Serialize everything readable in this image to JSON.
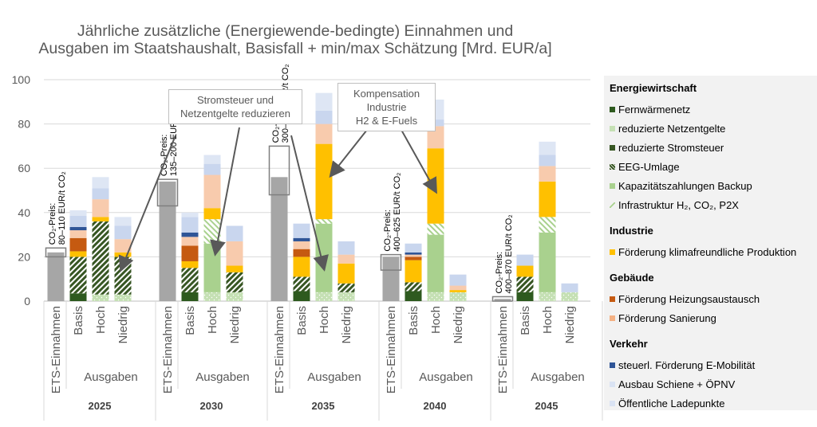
{
  "title_line1": "Jährliche zusätzliche (Energiewende-bedingte) Einnahmen und",
  "title_line2": "Ausgaben im Staatshaushalt, Basisfall + min/max Schätzung [Mrd. EUR/a]",
  "annotations": {
    "strom": [
      "Stromsteuer und",
      "Netzentgelte reduzieren"
    ],
    "komp": [
      "Kompensation",
      "Industrie",
      "H2 & E-Fuels"
    ]
  },
  "legend": [
    {
      "group": "Energiewirtschaft",
      "items": [
        {
          "label": "Fernwärmenetz",
          "color": "#2e5a1f",
          "icon": "solid"
        },
        {
          "label": "reduzierte Netzentgelte",
          "color": "#c5e0b4",
          "icon": "solid"
        },
        {
          "label": "reduzierte Stromsteuer",
          "color": "#375623",
          "icon": "solid"
        },
        {
          "label": "EEG-Umlage",
          "color": "#375623",
          "icon": "hatch"
        },
        {
          "label": "Kapazitätszahlungen Backup",
          "color": "#a9d18e",
          "icon": "solid"
        },
        {
          "label": "Infrastruktur H₂, CO₂, P2X",
          "color": "#a9d18e",
          "icon": "slash"
        }
      ]
    },
    {
      "group": "Industrie",
      "items": [
        {
          "label": "Förderung klimafreundliche Produktion",
          "color": "#ffc000",
          "icon": "solid"
        }
      ]
    },
    {
      "group": "Gebäude",
      "items": [
        {
          "label": "Förderung Heizungsaustausch",
          "color": "#c55a11",
          "icon": "solid"
        },
        {
          "label": "Förderung Sanierung",
          "color": "#f4b183",
          "icon": "solid"
        }
      ]
    },
    {
      "group": "Verkehr",
      "items": [
        {
          "label": "steuerl. Förderung E-Mobilität",
          "color": "#2f5597",
          "icon": "solid"
        },
        {
          "label": "Ausbau Schiene + ÖPNV",
          "color": "#dae3f3",
          "icon": "solid"
        },
        {
          "label": "Öffentliche Ladepunkte",
          "color": "#dae3f3",
          "icon": "solid"
        }
      ]
    }
  ],
  "chart_data": {
    "type": "bar",
    "stacked": true,
    "ylim": [
      0,
      100
    ],
    "yticks": [
      0,
      20,
      40,
      60,
      80,
      100
    ],
    "grid": true,
    "legend_position": "right",
    "category_labels": [
      "ETS-Einnahmen",
      "Basis",
      "Hoch",
      "Niedrig"
    ],
    "group_label": "Ausgaben",
    "groups": [
      {
        "year": "2025",
        "ets_total": 22,
        "ets_min": 20,
        "ets_max": 24,
        "co2_price": [
          "CO₂-Preis:",
          "80–110 EUR/t CO₂"
        ],
        "expenditures": {
          "Basis": {
            "total": 41,
            "components": [
              [
                "Fernwärmenetz",
                3.5
              ],
              [
                "EEG-Umlage",
                16.5
              ],
              [
                "Förderung klimafreundliche Produktion",
                2.5
              ],
              [
                "Förderung Heizungsaustausch",
                6
              ],
              [
                "Förderung Sanierung",
                3.5
              ],
              [
                "steuerl. Förderung E-Mobilität",
                1.5
              ],
              [
                "Ausbau Schiene + ÖPNV",
                5
              ],
              [
                "Öffentliche Ladepunkte",
                2.5
              ]
            ]
          },
          "Hoch": {
            "total": 56,
            "components": [
              [
                "reduzierte Netzentgelte",
                3
              ],
              [
                "EEG-Umlage",
                33
              ],
              [
                "Förderung klimafreundliche Produktion",
                2
              ],
              [
                "Förderung Sanierung",
                8
              ],
              [
                "Ausbau Schiene + ÖPNV",
                5
              ],
              [
                "Öffentliche Ladepunkte",
                5
              ]
            ]
          },
          "Niedrig": {
            "total": 38,
            "components": [
              [
                "reduzierte Netzentgelte",
                3
              ],
              [
                "EEG-Umlage",
                17
              ],
              [
                "Förderung klimafreundliche Produktion",
                2
              ],
              [
                "Förderung Sanierung",
                6
              ],
              [
                "Ausbau Schiene + ÖPNV",
                6
              ],
              [
                "Öffentliche Ladepunkte",
                4
              ]
            ]
          }
        }
      },
      {
        "year": "2030",
        "ets_total": 54,
        "ets_min": 43,
        "ets_max": 55,
        "co2_price": [
          "CO₂-Preis:",
          "135–200 EUR/t CO₂"
        ],
        "expenditures": {
          "Basis": {
            "total": 40,
            "components": [
              [
                "Fernwärmenetz",
                4
              ],
              [
                "EEG-Umlage",
                11
              ],
              [
                "Förderung klimafreundliche Produktion",
                3
              ],
              [
                "Förderung Heizungsaustausch",
                7
              ],
              [
                "Förderung Sanierung",
                4
              ],
              [
                "steuerl. Förderung E-Mobilität",
                2
              ],
              [
                "Ausbau Schiene + ÖPNV",
                7
              ],
              [
                "Öffentliche Ladepunkte",
                2
              ]
            ]
          },
          "Hoch": {
            "total": 66,
            "components": [
              [
                "reduzierte Netzentgelte",
                4
              ],
              [
                "Kapazitätszahlungen Backup",
                22
              ],
              [
                "Infrastruktur H₂, CO₂, P2X",
                11
              ],
              [
                "Förderung klimafreundliche Produktion",
                5
              ],
              [
                "Förderung Sanierung",
                15
              ],
              [
                "Ausbau Schiene + ÖPNV",
                5
              ],
              [
                "Öffentliche Ladepunkte",
                4
              ]
            ]
          },
          "Niedrig": {
            "total": 34,
            "components": [
              [
                "reduzierte Netzentgelte",
                4
              ],
              [
                "EEG-Umlage",
                9
              ],
              [
                "Förderung klimafreundliche Produktion",
                3
              ],
              [
                "Förderung Sanierung",
                11
              ],
              [
                "Ausbau Schiene + ÖPNV",
                7
              ]
            ]
          }
        }
      },
      {
        "year": "2035",
        "ets_total": 56,
        "ets_min": 48,
        "ets_max": 70,
        "co2_price": [
          "CO₂-Preis:",
          "300–500 EUR/t CO₂"
        ],
        "expenditures": {
          "Basis": {
            "total": 35,
            "components": [
              [
                "Fernwärmenetz",
                4.5
              ],
              [
                "EEG-Umlage",
                6.5
              ],
              [
                "Förderung klimafreundliche Produktion",
                9
              ],
              [
                "Förderung Heizungsaustausch",
                3.5
              ],
              [
                "Förderung Sanierung",
                3.5
              ],
              [
                "steuerl. Förderung E-Mobilität",
                1.5
              ],
              [
                "Ausbau Schiene + ÖPNV",
                6.5
              ]
            ]
          },
          "Hoch": {
            "total": 94,
            "components": [
              [
                "reduzierte Netzentgelte",
                4
              ],
              [
                "Kapazitätszahlungen Backup",
                31
              ],
              [
                "Infrastruktur H₂, CO₂, P2X",
                2
              ],
              [
                "Förderung klimafreundliche Produktion",
                34
              ],
              [
                "Förderung Sanierung",
                9
              ],
              [
                "Ausbau Schiene + ÖPNV",
                6
              ],
              [
                "Öffentliche Ladepunkte",
                8
              ]
            ]
          },
          "Niedrig": {
            "total": 27,
            "components": [
              [
                "reduzierte Netzentgelte",
                4
              ],
              [
                "EEG-Umlage",
                4
              ],
              [
                "Förderung klimafreundliche Produktion",
                9
              ],
              [
                "Förderung Sanierung",
                4
              ],
              [
                "Ausbau Schiene + ÖPNV",
                6
              ]
            ]
          }
        }
      },
      {
        "year": "2040",
        "ets_total": 20,
        "ets_min": 14,
        "ets_max": 21,
        "co2_price": [
          "CO₂-Preis:",
          "400–625 EUR/t CO₂"
        ],
        "expenditures": {
          "Basis": {
            "total": 26,
            "components": [
              [
                "Fernwärmenetz",
                4.5
              ],
              [
                "EEG-Umlage",
                4
              ],
              [
                "Förderung klimafreundliche Produktion",
                10
              ],
              [
                "Förderung Heizungsaustausch",
                1.5
              ],
              [
                "Förderung Sanierung",
                1
              ],
              [
                "steuerl. Förderung E-Mobilität",
                1
              ],
              [
                "Ausbau Schiene + ÖPNV",
                4
              ]
            ]
          },
          "Hoch": {
            "total": 91,
            "components": [
              [
                "reduzierte Netzentgelte",
                4
              ],
              [
                "Kapazitätszahlungen Backup",
                26
              ],
              [
                "Infrastruktur H₂, CO₂, P2X",
                5
              ],
              [
                "Förderung klimafreundliche Produktion",
                34
              ],
              [
                "Förderung Sanierung",
                10
              ],
              [
                "Ausbau Schiene + ÖPNV",
                3
              ],
              [
                "Öffentliche Ladepunkte",
                9
              ]
            ]
          },
          "Niedrig": {
            "total": 12,
            "components": [
              [
                "reduzierte Netzentgelte",
                4
              ],
              [
                "Förderung klimafreundliche Produktion",
                1
              ],
              [
                "Förderung Sanierung",
                2
              ],
              [
                "Ausbau Schiene + ÖPNV",
                5
              ]
            ]
          }
        }
      },
      {
        "year": "2045",
        "ets_total": 1,
        "ets_min": 0,
        "ets_max": 2,
        "co2_price": [
          "CO₂-Preis:",
          "400–870 EUR/t CO₂"
        ],
        "expenditures": {
          "Basis": {
            "total": 21,
            "components": [
              [
                "Fernwärmenetz",
                4
              ],
              [
                "EEG-Umlage",
                7
              ],
              [
                "Förderung klimafreundliche Produktion",
                5
              ],
              [
                "Ausbau Schiene + ÖPNV",
                5
              ]
            ]
          },
          "Hoch": {
            "total": 72,
            "components": [
              [
                "reduzierte Netzentgelte",
                4
              ],
              [
                "Kapazitätszahlungen Backup",
                27
              ],
              [
                "Infrastruktur H₂, CO₂, P2X",
                7
              ],
              [
                "Förderung klimafreundliche Produktion",
                16
              ],
              [
                "Förderung Sanierung",
                7
              ],
              [
                "Ausbau Schiene + ÖPNV",
                5
              ],
              [
                "Öffentliche Ladepunkte",
                6
              ]
            ]
          },
          "Niedrig": {
            "total": 8,
            "components": [
              [
                "reduzierte Netzentgelte",
                4
              ],
              [
                "Ausbau Schiene + ÖPNV",
                4
              ]
            ]
          }
        }
      }
    ]
  }
}
